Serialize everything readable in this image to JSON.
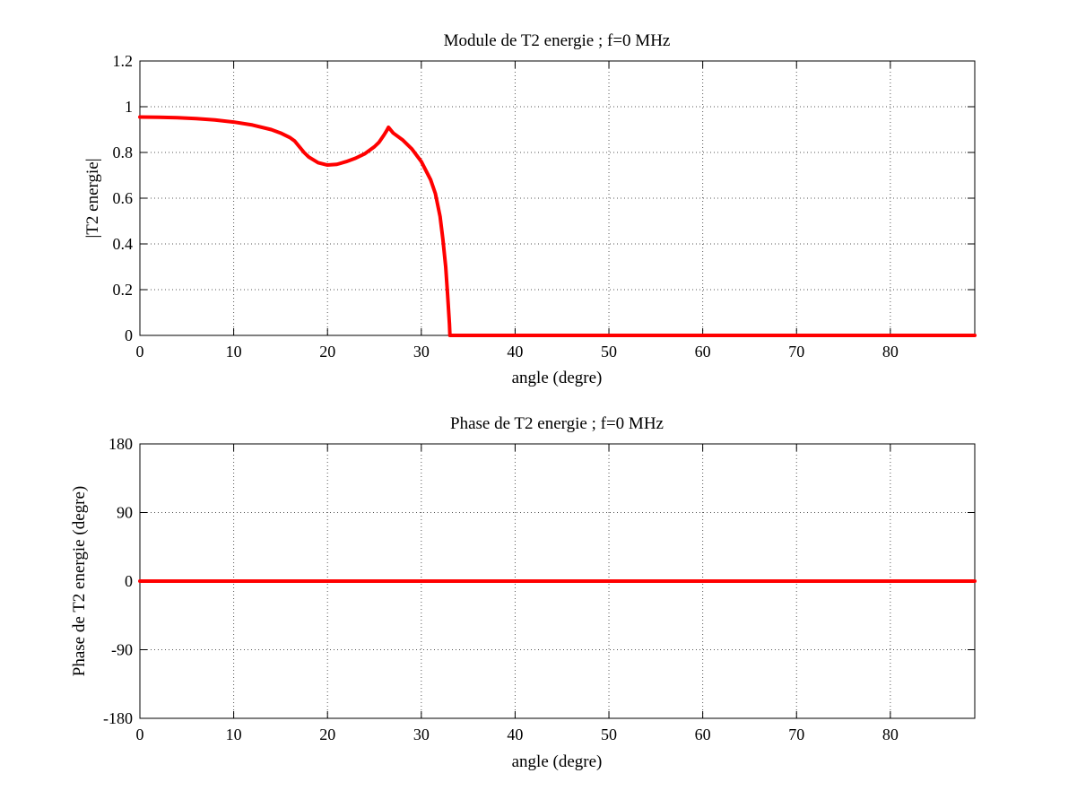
{
  "chart_data": [
    {
      "type": "line",
      "title": "Module de T2 energie ; f=0 MHz",
      "xlabel": "angle (degre)",
      "ylabel": "|T2 energie|",
      "xlim": [
        0,
        89
      ],
      "ylim": [
        0,
        1.2
      ],
      "xticks": [
        0,
        10,
        20,
        30,
        40,
        50,
        60,
        70,
        80
      ],
      "xtick_labels": [
        "0",
        "10",
        "20",
        "30",
        "40",
        "50",
        "60",
        "70",
        "80"
      ],
      "yticks": [
        0,
        0.2,
        0.4,
        0.6,
        0.8,
        1,
        1.2
      ],
      "ytick_labels": [
        "0",
        "0.2",
        "0.4",
        "0.6",
        "0.8",
        "1",
        "1.2"
      ],
      "grid": true,
      "series": [
        {
          "color": "#ff0000",
          "x": [
            0,
            2,
            4,
            6,
            8,
            10,
            12,
            14,
            15,
            16,
            16.5,
            17,
            17.5,
            18,
            19,
            20,
            21,
            22,
            23,
            24,
            25,
            25.5,
            26,
            26.3,
            26.5,
            26.8,
            27,
            28,
            29,
            30,
            31,
            31.5,
            32,
            32.3,
            32.6,
            32.8,
            33,
            33.05,
            34,
            40,
            50,
            60,
            70,
            80,
            89
          ],
          "y": [
            0.955,
            0.954,
            0.952,
            0.948,
            0.942,
            0.933,
            0.92,
            0.9,
            0.885,
            0.865,
            0.85,
            0.825,
            0.8,
            0.78,
            0.755,
            0.745,
            0.748,
            0.76,
            0.775,
            0.795,
            0.825,
            0.845,
            0.875,
            0.895,
            0.91,
            0.895,
            0.885,
            0.855,
            0.815,
            0.76,
            0.68,
            0.62,
            0.52,
            0.42,
            0.3,
            0.18,
            0.05,
            0,
            0,
            0,
            0,
            0,
            0,
            0,
            0
          ]
        }
      ]
    },
    {
      "type": "line",
      "title": "Phase de T2 energie ; f=0 MHz",
      "xlabel": "angle (degre)",
      "ylabel": "Phase de T2 energie (degre)",
      "xlim": [
        0,
        89
      ],
      "ylim": [
        -180,
        180
      ],
      "xticks": [
        0,
        10,
        20,
        30,
        40,
        50,
        60,
        70,
        80
      ],
      "xtick_labels": [
        "0",
        "10",
        "20",
        "30",
        "40",
        "50",
        "60",
        "70",
        "80"
      ],
      "yticks": [
        -180,
        -90,
        0,
        90,
        180
      ],
      "ytick_labels": [
        "-180",
        "-90",
        "0",
        "90",
        "180"
      ],
      "grid": true,
      "series": [
        {
          "color": "#ff0000",
          "x": [
            0,
            89
          ],
          "y": [
            0,
            0
          ]
        }
      ]
    }
  ]
}
